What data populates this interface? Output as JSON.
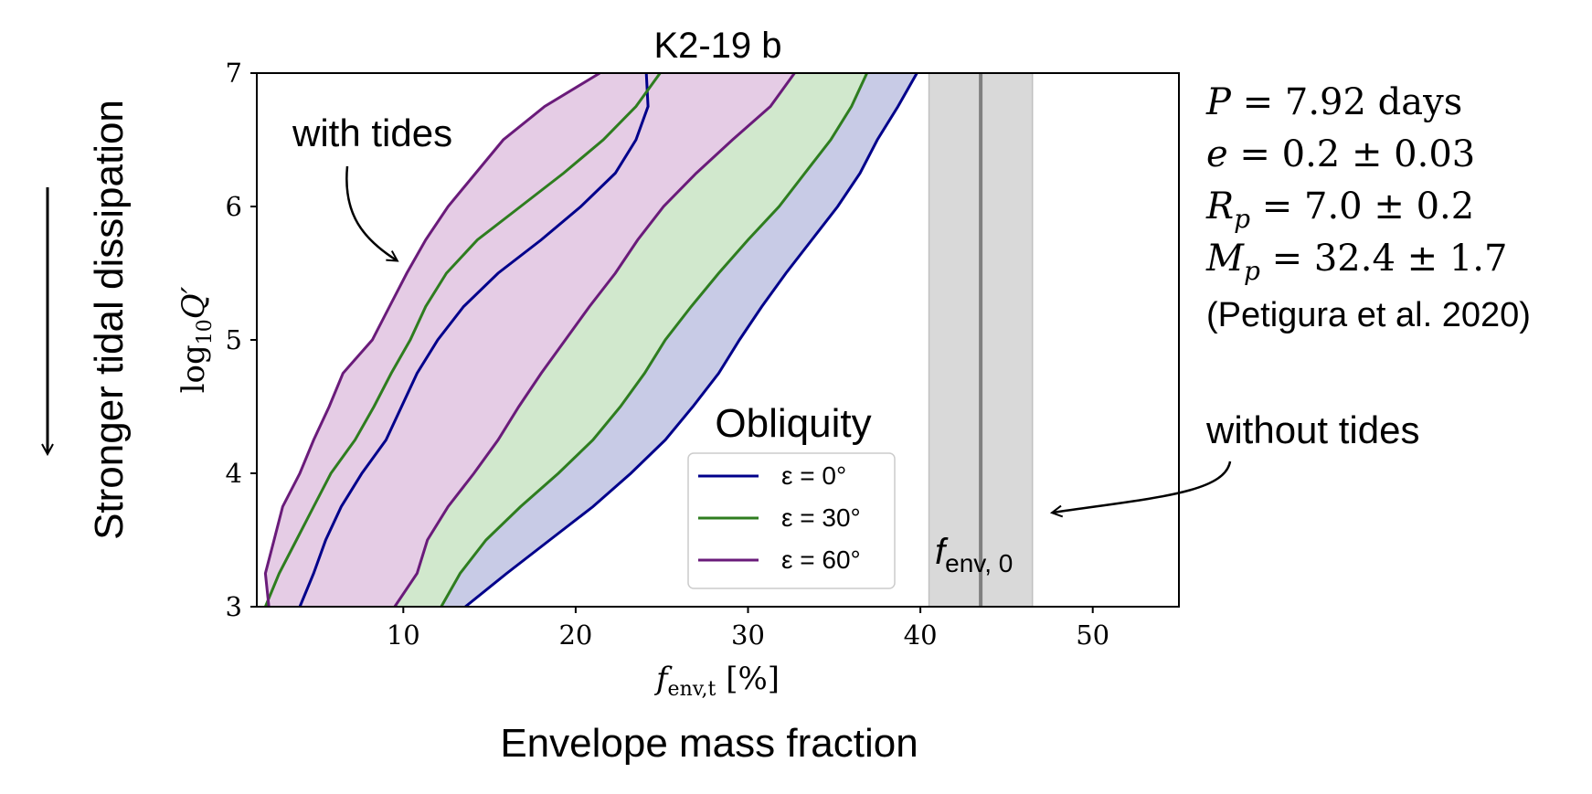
{
  "chart_data": {
    "type": "area",
    "title": "K2-19 b",
    "xlabel": "f_env,t [%]",
    "ylabel": "log10 Q′",
    "xlim": [
      1.5,
      55
    ],
    "ylim": [
      3,
      7
    ],
    "xticks": [
      "10",
      "20",
      "30",
      "40",
      "50"
    ],
    "yticks": [
      "3",
      "4",
      "5",
      "6",
      "7"
    ],
    "x_outer_label": "Envelope mass fraction",
    "y_outer_label": "Stronger tidal dissipation",
    "grid": false,
    "legend": {
      "title": "Obliquity",
      "position": "lower-right",
      "entries": [
        "ε = 0°",
        "ε = 30°",
        "ε = 60°"
      ]
    },
    "series": [
      {
        "name": "ε = 0°",
        "color": "#00008b",
        "fill": "#c8cbe6",
        "y": [
          3.0,
          3.25,
          3.5,
          3.75,
          4.0,
          4.25,
          4.5,
          4.75,
          5.0,
          5.25,
          5.5,
          5.75,
          6.0,
          6.25,
          6.5,
          6.75,
          7.0
        ],
        "low": [
          4.0,
          4.8,
          5.5,
          6.4,
          7.6,
          9.0,
          9.9,
          10.8,
          12.0,
          13.5,
          15.5,
          18.0,
          20.3,
          22.3,
          23.5,
          24.2,
          24.1
        ],
        "high": [
          13.6,
          16.0,
          18.5,
          21.0,
          23.2,
          25.2,
          26.8,
          28.3,
          29.5,
          30.8,
          32.2,
          33.7,
          35.2,
          36.5,
          37.5,
          38.7,
          39.8
        ]
      },
      {
        "name": "ε = 30°",
        "color": "#2e7d1f",
        "fill": "#d1e8cd",
        "y": [
          3.0,
          3.25,
          3.5,
          3.75,
          4.0,
          4.25,
          4.5,
          4.75,
          5.0,
          5.25,
          5.5,
          5.75,
          6.0,
          6.25,
          6.5,
          6.75,
          7.0
        ],
        "low": [
          2.0,
          2.8,
          3.8,
          4.8,
          5.8,
          7.2,
          8.3,
          9.3,
          10.4,
          11.3,
          12.5,
          14.3,
          16.8,
          19.3,
          21.6,
          23.5,
          24.9
        ],
        "high": [
          12.2,
          13.3,
          14.8,
          16.8,
          19.0,
          21.0,
          22.6,
          24.0,
          25.2,
          26.7,
          28.3,
          30.0,
          31.8,
          33.3,
          34.8,
          36.0,
          36.9
        ]
      },
      {
        "name": "ε = 60°",
        "color": "#6a1b7a",
        "fill": "#e5cce5",
        "y": [
          3.0,
          3.25,
          3.5,
          3.75,
          4.0,
          4.25,
          4.5,
          4.75,
          5.0,
          5.25,
          5.5,
          5.75,
          6.0,
          6.25,
          6.5,
          6.75,
          7.0
        ],
        "low": [
          2.2,
          2.0,
          2.5,
          3.0,
          4.0,
          4.8,
          5.7,
          6.5,
          8.2,
          9.2,
          10.2,
          11.3,
          12.6,
          14.2,
          15.8,
          18.2,
          21.4
        ],
        "high": [
          9.5,
          10.8,
          11.4,
          12.6,
          14.1,
          15.5,
          16.7,
          18.0,
          19.4,
          20.8,
          22.3,
          23.6,
          25.1,
          27.0,
          29.1,
          31.3,
          32.7
        ]
      }
    ],
    "no_tides": {
      "name": "f_env,0",
      "value": 43.5,
      "band": [
        40.5,
        46.5
      ],
      "line_color": "#808080",
      "band_color": "#d9d9d9"
    },
    "annotations": {
      "with_tides": "with tides",
      "without_tides": "without tides",
      "f_env0_label": "f",
      "f_env0_sub": "env, 0"
    },
    "params": [
      {
        "sym": "P",
        "sub": "",
        "text": "= 7.92 days"
      },
      {
        "sym": "e",
        "sub": "",
        "text": "= 0.2 ± 0.03"
      },
      {
        "sym": "R",
        "sub": "p",
        "text": "= 7.0 ± 0.2"
      },
      {
        "sym": "M",
        "sub": "p",
        "text": "= 32.4 ± 1.7"
      }
    ],
    "reference": "(Petigura et al. 2020)"
  }
}
